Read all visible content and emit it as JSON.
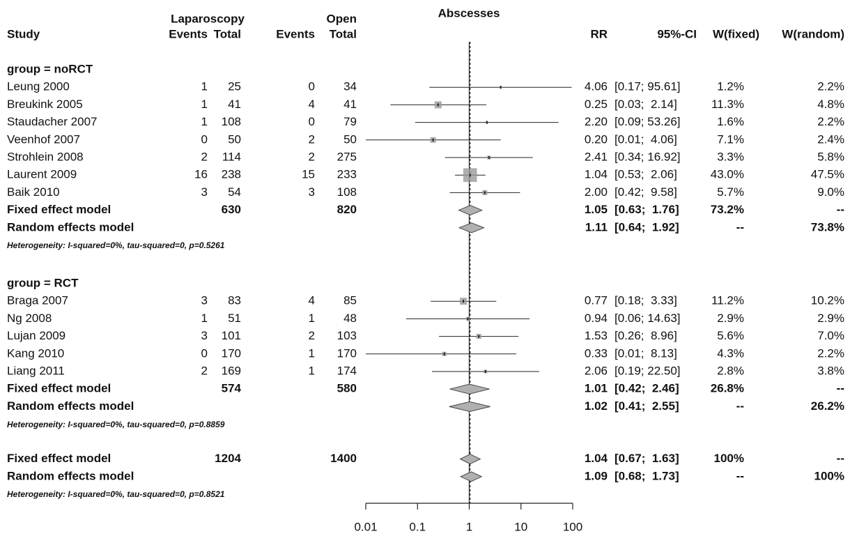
{
  "chart_data": {
    "type": "forest",
    "title": "Abscesses",
    "headers": {
      "study": "Study",
      "group1": "Laparoscopy",
      "group2": "Open",
      "events1": "Events",
      "total1": "Total",
      "events2": "Events",
      "total2": "Total",
      "rr": "RR",
      "ci": "95%-CI",
      "w_fixed": "W(fixed)",
      "w_random": "W(random)"
    },
    "xlog": true,
    "xlim": [
      0.01,
      100
    ],
    "xticks": [
      0.01,
      0.1,
      1,
      10,
      100
    ],
    "reference_line": 1,
    "groups": [
      {
        "label": "group = noRCT",
        "studies": [
          {
            "name": "Leung 2000",
            "e1": 1,
            "n1": 25,
            "e2": 0,
            "n2": 34,
            "rr": 4.06,
            "rr_label": "4.06",
            "ci": [
              0.17,
              95.61
            ],
            "ci_label": "[0.17; 95.61]",
            "w_fixed": 1.2,
            "w_fixed_label": "1.2%",
            "w_random": 2.2,
            "w_random_label": "2.2%"
          },
          {
            "name": "Breukink 2005",
            "e1": 1,
            "n1": 41,
            "e2": 4,
            "n2": 41,
            "rr": 0.25,
            "rr_label": "0.25",
            "ci": [
              0.03,
              2.14
            ],
            "ci_label": "[0.03;  2.14]",
            "w_fixed": 11.3,
            "w_fixed_label": "11.3%",
            "w_random": 4.8,
            "w_random_label": "4.8%"
          },
          {
            "name": "Staudacher 2007",
            "e1": 1,
            "n1": 108,
            "e2": 0,
            "n2": 79,
            "rr": 2.2,
            "rr_label": "2.20",
            "ci": [
              0.09,
              53.26
            ],
            "ci_label": "[0.09; 53.26]",
            "w_fixed": 1.6,
            "w_fixed_label": "1.6%",
            "w_random": 2.2,
            "w_random_label": "2.2%"
          },
          {
            "name": "Veenhof 2007",
            "e1": 0,
            "n1": 50,
            "e2": 2,
            "n2": 50,
            "rr": 0.2,
            "rr_label": "0.20",
            "ci": [
              0.01,
              4.06
            ],
            "ci_label": "[0.01;  4.06]",
            "w_fixed": 7.1,
            "w_fixed_label": "7.1%",
            "w_random": 2.4,
            "w_random_label": "2.4%"
          },
          {
            "name": "Strohlein 2008",
            "e1": 2,
            "n1": 114,
            "e2": 2,
            "n2": 275,
            "rr": 2.41,
            "rr_label": "2.41",
            "ci": [
              0.34,
              16.92
            ],
            "ci_label": "[0.34; 16.92]",
            "w_fixed": 3.3,
            "w_fixed_label": "3.3%",
            "w_random": 5.8,
            "w_random_label": "5.8%"
          },
          {
            "name": "Laurent 2009",
            "e1": 16,
            "n1": 238,
            "e2": 15,
            "n2": 233,
            "rr": 1.04,
            "rr_label": "1.04",
            "ci": [
              0.53,
              2.06
            ],
            "ci_label": "[0.53;  2.06]",
            "w_fixed": 43.0,
            "w_fixed_label": "43.0%",
            "w_random": 47.5,
            "w_random_label": "47.5%"
          },
          {
            "name": "Baik 2010",
            "e1": 3,
            "n1": 54,
            "e2": 3,
            "n2": 108,
            "rr": 2.0,
            "rr_label": "2.00",
            "ci": [
              0.42,
              9.58
            ],
            "ci_label": "[0.42;  9.58]",
            "w_fixed": 5.7,
            "w_fixed_label": "5.7%",
            "w_random": 9.0,
            "w_random_label": "9.0%"
          }
        ],
        "fixed": {
          "name": "Fixed effect model",
          "n1": 630,
          "n2": 820,
          "rr": 1.05,
          "rr_label": "1.05",
          "ci": [
            0.63,
            1.76
          ],
          "ci_label": "[0.63;  1.76]",
          "w_fixed": 73.2,
          "w_fixed_label": "73.2%",
          "w_random": null,
          "w_random_label": "--"
        },
        "random": {
          "name": "Random effects model",
          "rr": 1.11,
          "rr_label": "1.11",
          "ci": [
            0.64,
            1.92
          ],
          "ci_label": "[0.64;  1.92]",
          "w_fixed": null,
          "w_fixed_label": "--",
          "w_random": 73.8,
          "w_random_label": "73.8%"
        },
        "heterogeneity": "Heterogeneity: I-squared=0%, tau-squared=0, p=0.5261"
      },
      {
        "label": "group = RCT",
        "studies": [
          {
            "name": "Braga 2007",
            "e1": 3,
            "n1": 83,
            "e2": 4,
            "n2": 85,
            "rr": 0.77,
            "rr_label": "0.77",
            "ci": [
              0.18,
              3.33
            ],
            "ci_label": "[0.18;  3.33]",
            "w_fixed": 11.2,
            "w_fixed_label": "11.2%",
            "w_random": 10.2,
            "w_random_label": "10.2%"
          },
          {
            "name": "Ng 2008",
            "e1": 1,
            "n1": 51,
            "e2": 1,
            "n2": 48,
            "rr": 0.94,
            "rr_label": "0.94",
            "ci": [
              0.06,
              14.63
            ],
            "ci_label": "[0.06; 14.63]",
            "w_fixed": 2.9,
            "w_fixed_label": "2.9%",
            "w_random": 2.9,
            "w_random_label": "2.9%"
          },
          {
            "name": "Lujan 2009",
            "e1": 3,
            "n1": 101,
            "e2": 2,
            "n2": 103,
            "rr": 1.53,
            "rr_label": "1.53",
            "ci": [
              0.26,
              8.96
            ],
            "ci_label": "[0.26;  8.96]",
            "w_fixed": 5.6,
            "w_fixed_label": "5.6%",
            "w_random": 7.0,
            "w_random_label": "7.0%"
          },
          {
            "name": "Kang 2010",
            "e1": 0,
            "n1": 170,
            "e2": 1,
            "n2": 170,
            "rr": 0.33,
            "rr_label": "0.33",
            "ci": [
              0.01,
              8.13
            ],
            "ci_label": "[0.01;  8.13]",
            "w_fixed": 4.3,
            "w_fixed_label": "4.3%",
            "w_random": 2.2,
            "w_random_label": "2.2%"
          },
          {
            "name": "Liang 2011",
            "e1": 2,
            "n1": 169,
            "e2": 1,
            "n2": 174,
            "rr": 2.06,
            "rr_label": "2.06",
            "ci": [
              0.19,
              22.5
            ],
            "ci_label": "[0.19; 22.50]",
            "w_fixed": 2.8,
            "w_fixed_label": "2.8%",
            "w_random": 3.8,
            "w_random_label": "3.8%"
          }
        ],
        "fixed": {
          "name": "Fixed effect model",
          "n1": 574,
          "n2": 580,
          "rr": 1.01,
          "rr_label": "1.01",
          "ci": [
            0.42,
            2.46
          ],
          "ci_label": "[0.42;  2.46]",
          "w_fixed": 26.8,
          "w_fixed_label": "26.8%",
          "w_random": null,
          "w_random_label": "--"
        },
        "random": {
          "name": "Random effects model",
          "rr": 1.02,
          "rr_label": "1.02",
          "ci": [
            0.41,
            2.55
          ],
          "ci_label": "[0.41;  2.55]",
          "w_fixed": null,
          "w_fixed_label": "--",
          "w_random": 26.2,
          "w_random_label": "26.2%"
        },
        "heterogeneity": "Heterogeneity: I-squared=0%, tau-squared=0, p=0.8859"
      }
    ],
    "overall": {
      "fixed": {
        "name": "Fixed effect model",
        "n1": 1204,
        "n2": 1400,
        "rr": 1.04,
        "rr_label": "1.04",
        "ci": [
          0.67,
          1.63
        ],
        "ci_label": "[0.67;  1.63]",
        "w_fixed": 100,
        "w_fixed_label": "100%",
        "w_random": null,
        "w_random_label": "--"
      },
      "random": {
        "name": "Random effects model",
        "rr": 1.09,
        "rr_label": "1.09",
        "ci": [
          0.68,
          1.73
        ],
        "ci_label": "[0.68;  1.73]",
        "w_fixed": null,
        "w_fixed_label": "--",
        "w_random": 100,
        "w_random_label": "100%"
      },
      "heterogeneity": "Heterogeneity: I-squared=0%, tau-squared=0, p=0.8521"
    }
  }
}
